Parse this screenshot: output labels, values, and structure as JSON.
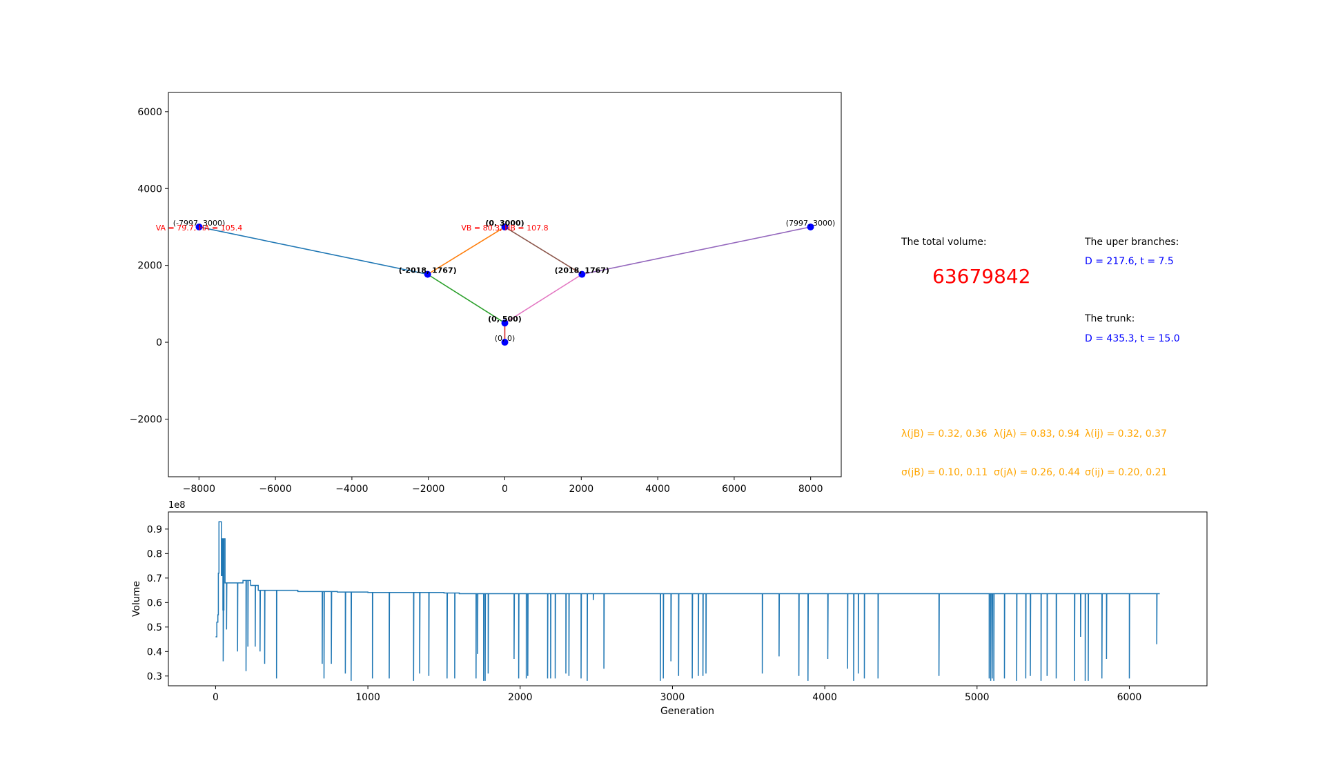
{
  "chart_data": [
    {
      "type": "line",
      "xlim": [
        -8800,
        8800
      ],
      "ylim": [
        -3500,
        6500
      ],
      "xticks": [
        -8000,
        -6000,
        -4000,
        -2000,
        0,
        2000,
        4000,
        6000,
        8000
      ],
      "yticks": [
        -2000,
        0,
        2000,
        4000,
        6000
      ],
      "xtick_labels": [
        "−8000",
        "−6000",
        "−4000",
        "−2000",
        "0",
        "2000",
        "4000",
        "6000",
        "8000"
      ],
      "ytick_labels": [
        "−2000",
        "0",
        "2000",
        "4000",
        "6000"
      ],
      "nodes": [
        {
          "x": -7997,
          "y": 3000,
          "label": "(-7997, 3000)",
          "bold": false
        },
        {
          "x": 0,
          "y": 3000,
          "label": "(0, 3000)",
          "bold": true
        },
        {
          "x": 7997,
          "y": 3000,
          "label": "(7997, 3000)",
          "bold": false
        },
        {
          "x": -2018,
          "y": 1767,
          "label": "(-2018, 1767)",
          "bold": true
        },
        {
          "x": 2018,
          "y": 1767,
          "label": "(2018, 1767)",
          "bold": true
        },
        {
          "x": 0,
          "y": 500,
          "label": "(0, 500)",
          "bold": true
        },
        {
          "x": 0,
          "y": 0,
          "label": "(0, 0)",
          "bold": false
        }
      ],
      "edges": [
        {
          "from": [
            -7997,
            3000
          ],
          "to": [
            -2018,
            1767
          ],
          "color": "#1f77b4"
        },
        {
          "from": [
            -2018,
            1767
          ],
          "to": [
            0,
            3000
          ],
          "color": "#ff7f0e"
        },
        {
          "from": [
            -2018,
            1767
          ],
          "to": [
            0,
            500
          ],
          "color": "#2ca02c"
        },
        {
          "from": [
            0,
            500
          ],
          "to": [
            0,
            0
          ],
          "color": "#d62728"
        },
        {
          "from": [
            0,
            3000
          ],
          "to": [
            2018,
            1767
          ],
          "color": "#8c564b"
        },
        {
          "from": [
            0,
            500
          ],
          "to": [
            2018,
            1767
          ],
          "color": "#e377c2"
        },
        {
          "from": [
            2018,
            1767
          ],
          "to": [
            7997,
            3000
          ],
          "color": "#9467bd"
        }
      ],
      "annotations": [
        {
          "text": "VA = 79.7, HA = 105.4",
          "x": -7997,
          "y": 3000,
          "color": "#ff0000"
        },
        {
          "text": "VB = 80.3, HB = 107.8",
          "x": 0,
          "y": 3000,
          "color": "#ff0000"
        }
      ],
      "node_color": "#0000ff",
      "grid": false
    },
    {
      "type": "line",
      "xlabel": "Generation",
      "ylabel": "Volume",
      "offset_text": "1e8",
      "xlim": [
        -310,
        6510
      ],
      "ylim": [
        0.26,
        0.97
      ],
      "xticks": [
        0,
        1000,
        2000,
        3000,
        4000,
        5000,
        6000
      ],
      "yticks": [
        0.3,
        0.4,
        0.5,
        0.6,
        0.7,
        0.8,
        0.9
      ],
      "line_color": "#1f77b4",
      "steps": [
        [
          0,
          0.46
        ],
        [
          8,
          0.52
        ],
        [
          15,
          0.55
        ],
        [
          18,
          0.72
        ],
        [
          22,
          0.93
        ],
        [
          30,
          0.93
        ],
        [
          38,
          0.71
        ],
        [
          42,
          0.86
        ],
        [
          48,
          0.57
        ],
        [
          55,
          0.86
        ],
        [
          62,
          0.68
        ],
        [
          140,
          0.68
        ],
        [
          160,
          0.68
        ],
        [
          180,
          0.69
        ],
        [
          230,
          0.67
        ],
        [
          280,
          0.65
        ],
        [
          400,
          0.65
        ],
        [
          540,
          0.645
        ],
        [
          700,
          0.645
        ],
        [
          800,
          0.643
        ],
        [
          1000,
          0.641
        ],
        [
          1500,
          0.639
        ],
        [
          1600,
          0.636
        ],
        [
          6200,
          0.636
        ]
      ],
      "spikes": [
        [
          50,
          0.36
        ],
        [
          72,
          0.49
        ],
        [
          144,
          0.4
        ],
        [
          200,
          0.32
        ],
        [
          212,
          0.42
        ],
        [
          260,
          0.42
        ],
        [
          292,
          0.4
        ],
        [
          322,
          0.35
        ],
        [
          400,
          0.29
        ],
        [
          700,
          0.35
        ],
        [
          712,
          0.29
        ],
        [
          760,
          0.35
        ],
        [
          852,
          0.31
        ],
        [
          890,
          0.28
        ],
        [
          1030,
          0.29
        ],
        [
          1140,
          0.29
        ],
        [
          1300,
          0.28
        ],
        [
          1340,
          0.31
        ],
        [
          1400,
          0.3
        ],
        [
          1520,
          0.29
        ],
        [
          1570,
          0.29
        ],
        [
          1710,
          0.29
        ],
        [
          1720,
          0.39
        ],
        [
          1760,
          0.28
        ],
        [
          1770,
          0.28
        ],
        [
          1790,
          0.31
        ],
        [
          1960,
          0.37
        ],
        [
          1990,
          0.29
        ],
        [
          2040,
          0.29
        ],
        [
          2050,
          0.3
        ],
        [
          2180,
          0.29
        ],
        [
          2200,
          0.29
        ],
        [
          2230,
          0.29
        ],
        [
          2300,
          0.31
        ],
        [
          2320,
          0.3
        ],
        [
          2400,
          0.29
        ],
        [
          2440,
          0.28
        ],
        [
          2480,
          0.61
        ],
        [
          2550,
          0.33
        ],
        [
          2920,
          0.28
        ],
        [
          2940,
          0.29
        ],
        [
          2990,
          0.36
        ],
        [
          3040,
          0.3
        ],
        [
          3130,
          0.29
        ],
        [
          3170,
          0.3
        ],
        [
          3200,
          0.3
        ],
        [
          3220,
          0.31
        ],
        [
          3590,
          0.31
        ],
        [
          3700,
          0.38
        ],
        [
          3830,
          0.3
        ],
        [
          3890,
          0.28
        ],
        [
          4020,
          0.37
        ],
        [
          4150,
          0.33
        ],
        [
          4190,
          0.28
        ],
        [
          4220,
          0.31
        ],
        [
          4260,
          0.29
        ],
        [
          4350,
          0.29
        ],
        [
          4750,
          0.3
        ],
        [
          5080,
          0.29
        ],
        [
          5090,
          0.28
        ],
        [
          5100,
          0.29
        ],
        [
          5110,
          0.28
        ],
        [
          5180,
          0.29
        ],
        [
          5260,
          0.28
        ],
        [
          5320,
          0.29
        ],
        [
          5350,
          0.3
        ],
        [
          5420,
          0.28
        ],
        [
          5460,
          0.3
        ],
        [
          5520,
          0.29
        ],
        [
          5640,
          0.28
        ],
        [
          5680,
          0.46
        ],
        [
          5710,
          0.28
        ],
        [
          5730,
          0.28
        ],
        [
          5820,
          0.29
        ],
        [
          5850,
          0.37
        ],
        [
          6000,
          0.29
        ],
        [
          6180,
          0.43
        ]
      ]
    }
  ],
  "info": {
    "total_volume_label": "The total volume:",
    "total_volume_value": "63679842",
    "upper_branches_label": "The uper branches:",
    "upper_branches_value": "D = 217.6, t = 7.5",
    "trunk_label": "The trunk:",
    "trunk_value": "D = 435.3, t = 15.0",
    "lambda_jB": "λ(jB) = 0.32, 0.36",
    "lambda_jA": "λ(jA) = 0.83, 0.94",
    "lambda_ij": "λ(ij) = 0.32, 0.37",
    "sigma_jB": "σ(jB) = 0.10, 0.11",
    "sigma_jA": "σ(jA) = 0.26, 0.44",
    "sigma_ij": "σ(ij) = 0.20, 0.21",
    "colors": {
      "black": "#000000",
      "red": "#ff0000",
      "blue": "#0000ff",
      "orange": "#ffa500"
    }
  }
}
